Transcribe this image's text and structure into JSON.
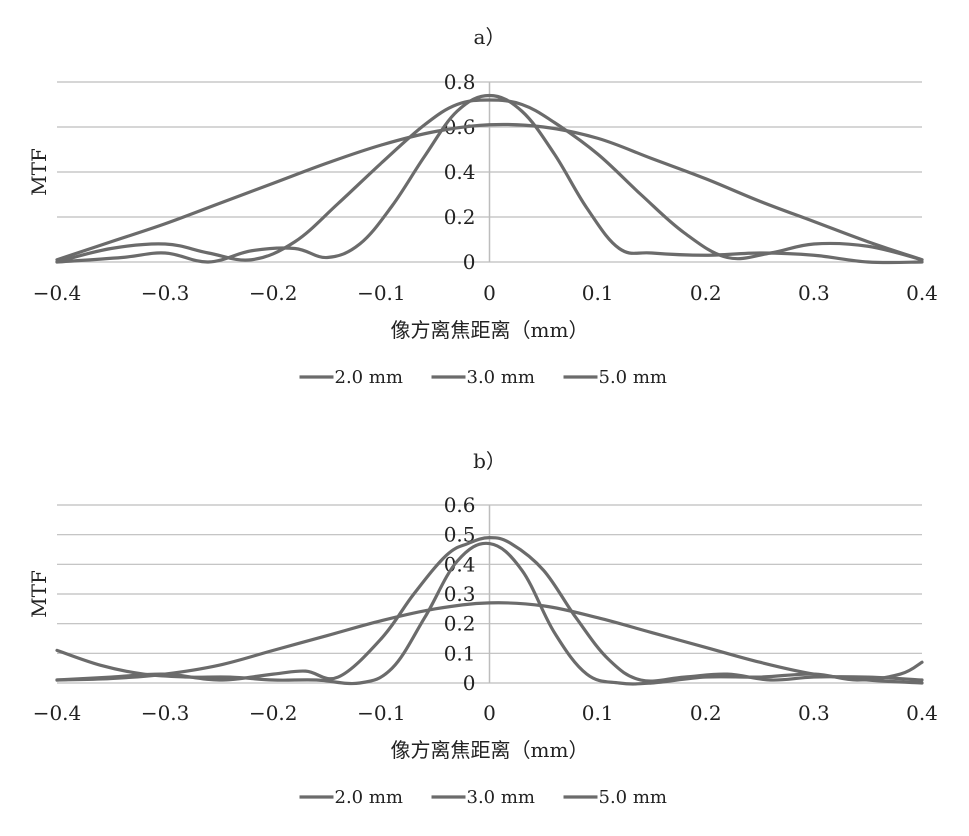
{
  "colors": {
    "series": "#6b6b6b",
    "grid": "#bdbdbd",
    "text": "#222222"
  },
  "chart_data": [
    {
      "type": "line",
      "title": "a）",
      "xlabel": "像方离焦距离（mm）",
      "ylabel": "MTF",
      "xlim": [
        -0.4,
        0.4
      ],
      "ylim": [
        0,
        0.8
      ],
      "xticks": [
        -0.4,
        -0.3,
        -0.2,
        -0.1,
        0,
        0.1,
        0.2,
        0.3,
        0.4
      ],
      "xtick_labels": [
        "−0.4",
        "−0.3",
        "−0.2",
        "−0.1",
        "0",
        "0.1",
        "0.2",
        "0.3",
        "0.4"
      ],
      "yticks": [
        0,
        0.2,
        0.4,
        0.6,
        0.8
      ],
      "ytick_labels": [
        "0",
        "0.2",
        "0.4",
        "0.6",
        "0.8"
      ],
      "grid": true,
      "legend_position": "bottom",
      "series": [
        {
          "name": "2.0 mm",
          "x": [
            -0.4,
            -0.35,
            -0.3,
            -0.25,
            -0.2,
            -0.15,
            -0.1,
            -0.05,
            0,
            0.05,
            0.1,
            0.15,
            0.2,
            0.25,
            0.3,
            0.35,
            0.4
          ],
          "y": [
            0.01,
            0.09,
            0.17,
            0.26,
            0.35,
            0.44,
            0.52,
            0.58,
            0.61,
            0.6,
            0.55,
            0.46,
            0.37,
            0.27,
            0.18,
            0.09,
            0.01
          ]
        },
        {
          "name": "3.0 mm",
          "x": [
            -0.4,
            -0.35,
            -0.3,
            -0.26,
            -0.22,
            -0.18,
            -0.14,
            -0.1,
            -0.06,
            -0.03,
            0,
            0.03,
            0.06,
            0.1,
            0.14,
            0.18,
            0.22,
            0.26,
            0.3,
            0.35,
            0.4
          ],
          "y": [
            0.0,
            0.06,
            0.08,
            0.04,
            0.01,
            0.09,
            0.26,
            0.44,
            0.61,
            0.7,
            0.72,
            0.7,
            0.62,
            0.48,
            0.3,
            0.13,
            0.02,
            0.04,
            0.08,
            0.07,
            0.01
          ]
        },
        {
          "name": "5.0 mm",
          "x": [
            -0.4,
            -0.34,
            -0.3,
            -0.26,
            -0.22,
            -0.18,
            -0.15,
            -0.12,
            -0.09,
            -0.06,
            -0.03,
            0,
            0.03,
            0.06,
            0.09,
            0.12,
            0.15,
            0.2,
            0.25,
            0.3,
            0.35,
            0.4
          ],
          "y": [
            0.0,
            0.02,
            0.04,
            0.0,
            0.05,
            0.06,
            0.02,
            0.08,
            0.25,
            0.47,
            0.67,
            0.74,
            0.67,
            0.48,
            0.24,
            0.06,
            0.04,
            0.03,
            0.04,
            0.03,
            0.0,
            0.0
          ]
        }
      ]
    },
    {
      "type": "line",
      "title": "b）",
      "xlabel": "像方离焦距离（mm）",
      "ylabel": "MTF",
      "xlim": [
        -0.4,
        0.4
      ],
      "ylim": [
        0,
        0.6
      ],
      "xticks": [
        -0.4,
        -0.3,
        -0.2,
        -0.1,
        0,
        0.1,
        0.2,
        0.3,
        0.4
      ],
      "xtick_labels": [
        "−0.4",
        "−0.3",
        "−0.2",
        "−0.1",
        "0",
        "0.1",
        "0.2",
        "0.3",
        "0.4"
      ],
      "yticks": [
        0,
        0.1,
        0.2,
        0.3,
        0.4,
        0.5,
        0.6
      ],
      "ytick_labels": [
        "0",
        "0.1",
        "0.2",
        "0.3",
        "0.4",
        "0.5",
        "0.6"
      ],
      "grid": true,
      "legend_position": "bottom",
      "series": [
        {
          "name": "2.0 mm",
          "x": [
            -0.4,
            -0.35,
            -0.3,
            -0.25,
            -0.2,
            -0.15,
            -0.1,
            -0.05,
            0,
            0.05,
            0.1,
            0.15,
            0.2,
            0.25,
            0.3,
            0.35,
            0.4
          ],
          "y": [
            0.01,
            0.015,
            0.03,
            0.06,
            0.11,
            0.16,
            0.21,
            0.25,
            0.27,
            0.26,
            0.22,
            0.17,
            0.12,
            0.07,
            0.03,
            0.01,
            0.0
          ]
        },
        {
          "name": "3.0 mm",
          "x": [
            -0.4,
            -0.35,
            -0.3,
            -0.25,
            -0.2,
            -0.17,
            -0.14,
            -0.1,
            -0.07,
            -0.04,
            -0.02,
            0,
            0.02,
            0.05,
            0.08,
            0.11,
            0.14,
            0.18,
            0.22,
            0.26,
            0.3,
            0.35,
            0.4
          ],
          "y": [
            0.01,
            0.02,
            0.03,
            0.01,
            0.03,
            0.04,
            0.02,
            0.15,
            0.3,
            0.43,
            0.47,
            0.49,
            0.47,
            0.38,
            0.22,
            0.08,
            0.01,
            0.02,
            0.03,
            0.01,
            0.02,
            0.02,
            0.01
          ]
        },
        {
          "name": "5.0 mm",
          "x": [
            -0.4,
            -0.36,
            -0.32,
            -0.28,
            -0.24,
            -0.2,
            -0.16,
            -0.12,
            -0.09,
            -0.06,
            -0.03,
            0,
            0.03,
            0.06,
            0.09,
            0.12,
            0.15,
            0.2,
            0.25,
            0.3,
            0.34,
            0.38,
            0.4
          ],
          "y": [
            0.11,
            0.06,
            0.03,
            0.02,
            0.02,
            0.01,
            0.01,
            0.0,
            0.05,
            0.22,
            0.41,
            0.47,
            0.38,
            0.17,
            0.03,
            0.0,
            0.0,
            0.02,
            0.02,
            0.03,
            0.01,
            0.03,
            0.07
          ]
        }
      ]
    }
  ]
}
